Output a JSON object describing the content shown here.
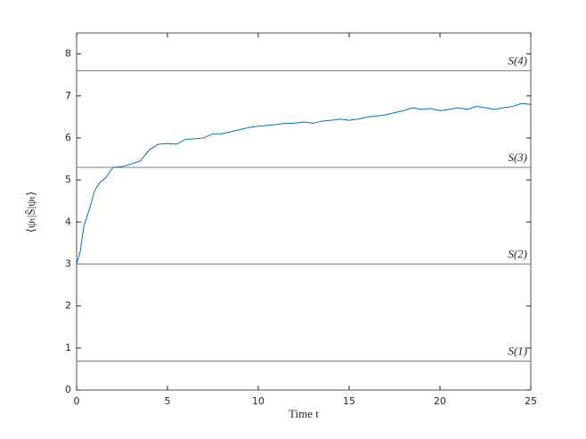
{
  "chart_data": {
    "type": "line",
    "x_label": "Time t",
    "y_label": "⟨ψₜ|Ŝ|ψₜ⟩",
    "xlim": [
      0,
      25
    ],
    "xticks": [
      0,
      5,
      10,
      15,
      20,
      25
    ],
    "ylim": [
      0,
      8.5
    ],
    "yticks": [
      0,
      1,
      2,
      3,
      4,
      5,
      6,
      7,
      8
    ],
    "reference_lines": [
      {
        "label": "S(1)",
        "value": 0.69,
        "color": "#7f7f7f"
      },
      {
        "label": "S(2)",
        "value": 3,
        "color": "#7f7f7f"
      },
      {
        "label": "S(3)",
        "value": 5.3,
        "color": "#7f7f7f"
      },
      {
        "label": "S(4)",
        "value": 7.6,
        "color": "#7f7f7f"
      }
    ],
    "x": [
      0,
      0.2,
      0.4,
      0.7,
      1,
      1.3,
      1.6,
      2,
      2.5,
      3,
      3.5,
      4,
      4.5,
      5,
      5.5,
      6,
      6.5,
      7,
      7.5,
      8,
      8.5,
      9,
      9.5,
      10,
      10.5,
      11,
      11.5,
      12,
      12.5,
      13,
      13.5,
      14,
      14.5,
      15,
      15.5,
      16,
      16.5,
      17,
      17.5,
      18,
      18.5,
      19,
      19.5,
      20,
      20.5,
      21,
      21.5,
      22,
      22.5,
      23,
      23.5,
      24,
      24.5,
      25
    ],
    "series": [
      {
        "color": "#0072bd",
        "values": [
          3.0,
          3.3,
          3.9,
          4.3,
          4.75,
          4.95,
          5.05,
          5.3,
          5.32,
          5.38,
          5.45,
          5.72,
          5.85,
          5.87,
          5.85,
          5.97,
          5.98,
          6.0,
          6.1,
          6.1,
          6.15,
          6.2,
          6.25,
          6.28,
          6.3,
          6.32,
          6.35,
          6.35,
          6.38,
          6.35,
          6.4,
          6.42,
          6.45,
          6.42,
          6.45,
          6.5,
          6.52,
          6.55,
          6.6,
          6.65,
          6.72,
          6.68,
          6.7,
          6.65,
          6.68,
          6.72,
          6.68,
          6.75,
          6.72,
          6.68,
          6.72,
          6.75,
          6.82,
          6.8
        ]
      }
    ]
  }
}
